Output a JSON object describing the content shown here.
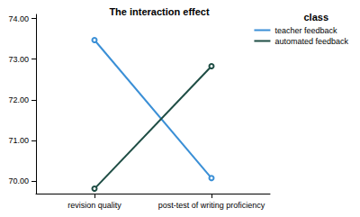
{
  "chart_data": {
    "type": "line",
    "title": "The interaction effect",
    "legend_title": "class",
    "categories": [
      "revision quality",
      "post-test of writing proficiency"
    ],
    "series": [
      {
        "name": "teacher feedback",
        "color": "#3a8fd6",
        "values": [
          73.47,
          70.08
        ]
      },
      {
        "name": "automated feedback",
        "color": "#1e4d44",
        "values": [
          69.82,
          72.83
        ]
      }
    ],
    "ylim": [
      69.7,
      74.1
    ],
    "yticks": [
      {
        "value": 70,
        "label": "70.00"
      },
      {
        "value": 71,
        "label": "71.00"
      },
      {
        "value": 72,
        "label": "72.00"
      },
      {
        "value": 73,
        "label": "73.00"
      },
      {
        "value": 74,
        "label": "74.00"
      }
    ],
    "grid": false,
    "legend": "top-right",
    "marker": "circle"
  }
}
